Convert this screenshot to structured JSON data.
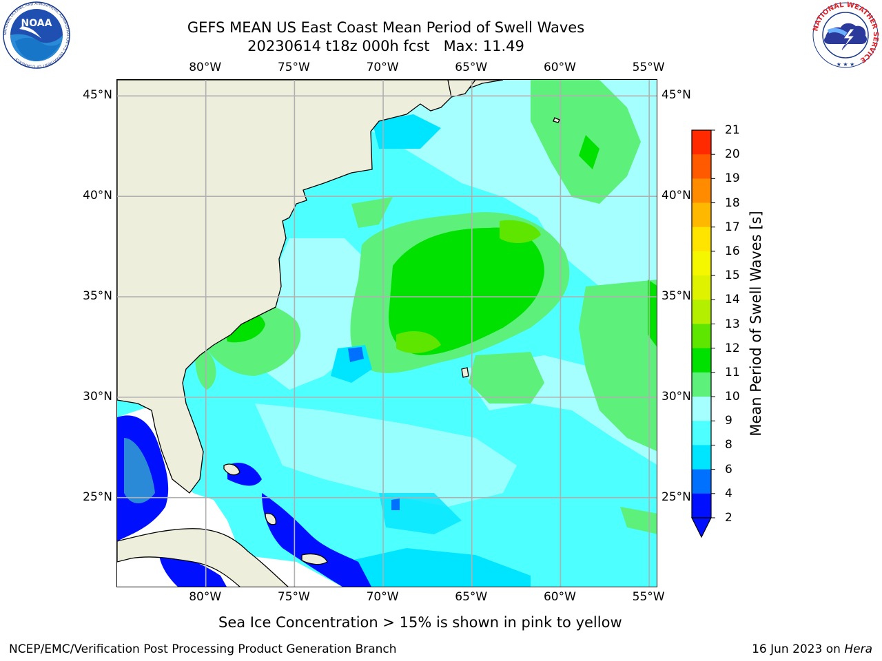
{
  "title": {
    "line1": "GEFS MEAN US East Coast Mean Period of Swell Waves",
    "line2": "20230614 t18z 000h fcst   Max: 11.49"
  },
  "axes": {
    "lon_labels": [
      "80°W",
      "75°W",
      "70°W",
      "65°W",
      "60°W",
      "55°W"
    ],
    "lat_labels": [
      "45°N",
      "40°N",
      "35°N",
      "30°N",
      "25°N"
    ],
    "lon_values": [
      -80,
      -75,
      -70,
      -65,
      -60,
      -55
    ],
    "lat_values": [
      45,
      40,
      35,
      30,
      25
    ],
    "lon_range": [
      -85,
      -54.5
    ],
    "lat_range": [
      20.5,
      45.8
    ]
  },
  "colorbar": {
    "title": "Mean Period of Swell Waves [s]",
    "levels": [
      "2",
      "4",
      "6",
      "8",
      "9",
      "10",
      "11",
      "12",
      "13",
      "14",
      "15",
      "16",
      "17",
      "18",
      "19",
      "20",
      "21"
    ],
    "colors": [
      "#0010ff",
      "#0070ff",
      "#00e5ff",
      "#4dffff",
      "#a6ffff",
      "#5df07a",
      "#00e100",
      "#5ee600",
      "#b4ef00",
      "#dff200",
      "#f4f700",
      "#ffe400",
      "#ffb800",
      "#ff8c00",
      "#ff5a00",
      "#ff2a00"
    ],
    "under_color": "#0010ff"
  },
  "map_colors": {
    "land": "#eeeedc",
    "ocean_nodata": "#ffffff",
    "grid": "#b0b0b0"
  },
  "logos": {
    "left_text": "NOAA",
    "left_ring_text": "NATIONAL OCEANIC AND ATMOSPHERIC ADMINISTRATION  U.S. DEPARTMENT OF COMMERCE",
    "right_ring_text": "NATIONAL WEATHER SERVICE"
  },
  "caption": "Sea Ice Concentration > 15% is shown in pink to yellow",
  "footer": {
    "left": "NCEP/EMC/Verification Post Processing Product Generation Branch",
    "right_prefix": "16 Jun 2023 on ",
    "right_host": "Hera"
  }
}
